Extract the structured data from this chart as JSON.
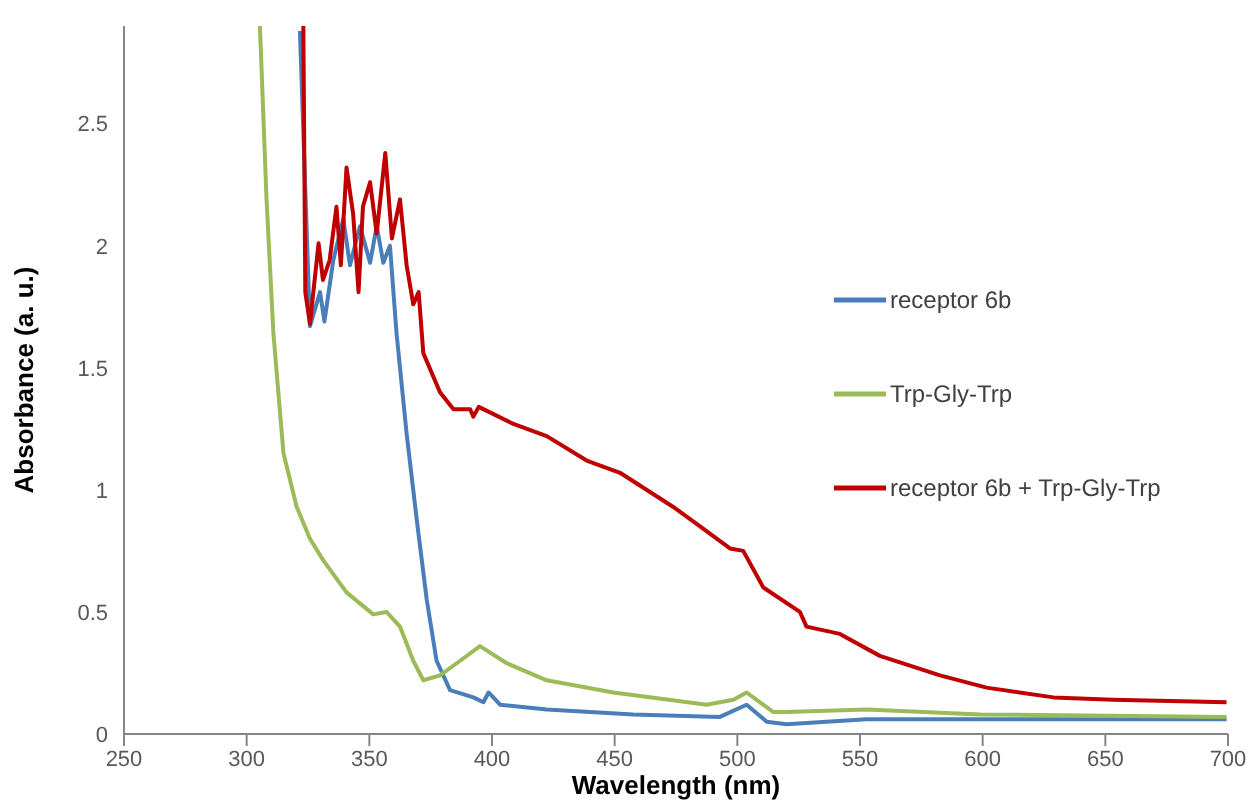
{
  "chart_data": {
    "type": "line",
    "xlabel": "Wavelength (nm)",
    "ylabel": "Absorbance (a. u.)",
    "xlim": [
      250,
      700
    ],
    "xticks": [
      250,
      300,
      350,
      400,
      450,
      500,
      550,
      600,
      650,
      700
    ],
    "ylim": [
      0,
      2.9
    ],
    "yticks": [
      0,
      0.5,
      1,
      1.5,
      2,
      2.5
    ],
    "grid": false,
    "legend": "right",
    "marker": "none",
    "line_style": "solid",
    "series": [
      {
        "name": "receptor 6b",
        "color": "#4a7ebb",
        "x": [
          321.7,
          325.8,
          329.9,
          331.7,
          335.3,
          339.4,
          342.1,
          346.2,
          350.3,
          353,
          355.7,
          358.4,
          361.1,
          365.2,
          369.3,
          373.4,
          377.4,
          382.9,
          392.4,
          396.5,
          398.6,
          403.3,
          422.3,
          457.6,
          492.9,
          503.8,
          512,
          520,
          552.7,
          620.6,
          699.4
        ],
        "values": [
          2.88,
          1.67,
          1.81,
          1.69,
          1.94,
          2.11,
          1.92,
          2.08,
          1.93,
          2.08,
          1.93,
          2.0,
          1.64,
          1.23,
          0.88,
          0.55,
          0.3,
          0.18,
          0.15,
          0.13,
          0.17,
          0.12,
          0.1,
          0.08,
          0.07,
          0.12,
          0.05,
          0.04,
          0.06,
          0.06,
          0.06
        ]
      },
      {
        "name": "Trp-Gly-Trp",
        "color": "#9bbb59",
        "x": [
          305.4,
          308.1,
          310.9,
          315,
          320.4,
          325.8,
          331.3,
          340.7,
          351.6,
          357,
          362.5,
          367.9,
          372,
          378.8,
          387,
          395.1,
          406,
          422.3,
          449.5,
          487.5,
          498.4,
          503.8,
          514.7,
          520,
          552.7,
          599,
          699.4
        ],
        "values": [
          2.9,
          2.19,
          1.64,
          1.15,
          0.93,
          0.8,
          0.71,
          0.58,
          0.49,
          0.5,
          0.44,
          0.3,
          0.22,
          0.24,
          0.3,
          0.36,
          0.29,
          0.22,
          0.17,
          0.12,
          0.14,
          0.17,
          0.09,
          0.09,
          0.1,
          0.08,
          0.07
        ]
      },
      {
        "name": "receptor 6b + Trp-Gly-Trp",
        "color": "#c00000",
        "x": [
          323.1,
          323.9,
          325.8,
          329.3,
          331.1,
          333.8,
          336.6,
          338.4,
          340.7,
          343.4,
          345.6,
          347.4,
          350.3,
          353,
          356.5,
          359.2,
          362.5,
          365.2,
          367.9,
          370.1,
          372,
          378.8,
          384.3,
          391.1,
          392.4,
          394.6,
          408.7,
          422.3,
          438.6,
          452.2,
          473.9,
          484.8,
          497,
          502.4,
          510.6,
          525.5,
          528.2,
          541.8,
          558.1,
          582.6,
          601.6,
          628.8,
          653.2,
          699.4
        ],
        "values": [
          2.9,
          1.81,
          1.68,
          2.01,
          1.86,
          1.94,
          2.16,
          1.92,
          2.32,
          2.13,
          1.81,
          2.16,
          2.26,
          2.05,
          2.38,
          2.03,
          2.19,
          1.92,
          1.76,
          1.81,
          1.56,
          1.4,
          1.33,
          1.33,
          1.3,
          1.34,
          1.27,
          1.22,
          1.12,
          1.07,
          0.93,
          0.85,
          0.76,
          0.75,
          0.6,
          0.5,
          0.44,
          0.41,
          0.32,
          0.24,
          0.19,
          0.15,
          0.14,
          0.13
        ]
      }
    ]
  }
}
